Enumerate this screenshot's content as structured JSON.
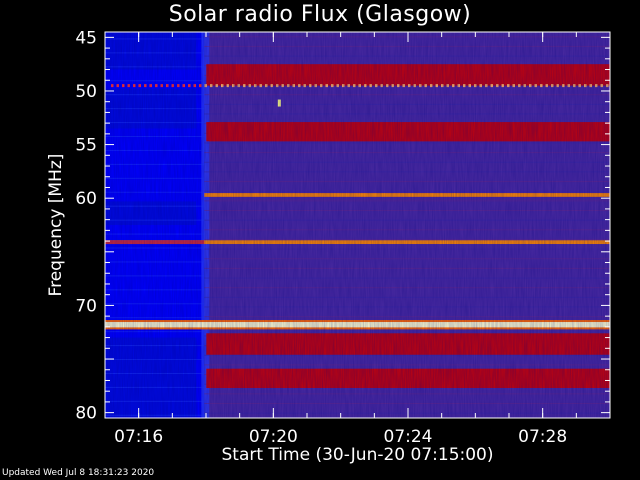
{
  "chart_data": {
    "type": "heatmap",
    "title": "Solar radio Flux (Glasgow)",
    "xlabel": "Start Time (30-Jun-20 07:15:00)",
    "ylabel": "Frequency [MHz]",
    "x_range_minutes": [
      "07:15",
      "07:30"
    ],
    "x_ticks": [
      "07:16",
      "07:20",
      "07:24",
      "07:28"
    ],
    "y_range_mhz": [
      44.5,
      80.5
    ],
    "y_ticks": [
      45,
      50,
      55,
      60,
      65,
      70,
      75,
      80
    ],
    "y_tick_labels": [
      "45",
      "50",
      "55",
      "60",
      "",
      "70",
      "",
      "80"
    ],
    "y_inverted": true,
    "colormap": [
      "#0000ff",
      "#4a2aa0",
      "#cc0000",
      "#ff8800",
      "#ffffcc"
    ],
    "background_onset_time": "07:17:57",
    "emission_bands_mhz": [
      {
        "center": 48.5,
        "width": 2.0,
        "level": "red"
      },
      {
        "center": 53.8,
        "width": 1.8,
        "level": "red"
      },
      {
        "center": 59.7,
        "width": 0.35,
        "level": "orange"
      },
      {
        "center": 64.1,
        "width": 0.35,
        "level": "orange"
      },
      {
        "center": 71.8,
        "width": 0.5,
        "level": "bright"
      },
      {
        "center": 73.6,
        "width": 2.0,
        "level": "red"
      },
      {
        "center": 76.8,
        "width": 1.8,
        "level": "red"
      }
    ]
  },
  "footer": {
    "updated": "Updated Wed Jul  8 18:31:23 2020"
  }
}
